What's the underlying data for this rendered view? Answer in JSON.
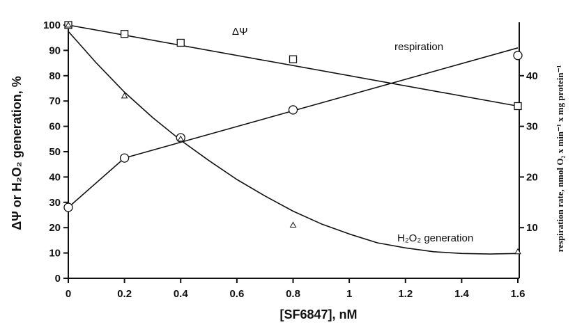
{
  "chart_data": {
    "type": "line",
    "x_label": "[SF6847], nM",
    "y_label_left": "ΔΨ or H₂O₂ generation, %",
    "y_label_right": "respiration rate, nmol O₂ x min⁻¹ x mg protein⁻¹",
    "xlim": [
      0,
      1.6
    ],
    "ylim_left": [
      0,
      100
    ],
    "ylim_right": [
      0,
      50
    ],
    "x_ticks": [
      0,
      0.2,
      0.4,
      0.6,
      0.8,
      1,
      1.2,
      1.4,
      1.6
    ],
    "x_tick_labels": [
      "0",
      "0.2",
      "0.4",
      "0.6",
      "0.8",
      "1",
      "1.2",
      "1.4",
      "1.6"
    ],
    "y_left_ticks": [
      0,
      10,
      20,
      30,
      40,
      50,
      60,
      70,
      80,
      90,
      100
    ],
    "y_left_tick_labels": [
      "0",
      "10",
      "20",
      "30",
      "40",
      "50",
      "60",
      "70",
      "80",
      "90",
      "100"
    ],
    "y_right_ticks": [
      10,
      20,
      30,
      40
    ],
    "y_right_tick_labels": [
      "10",
      "20",
      "30",
      "40"
    ],
    "grid": false,
    "series": [
      {
        "name": "ΔΨ",
        "marker": "square",
        "axis": "left",
        "x": [
          0,
          0.2,
          0.4,
          0.8,
          1.6
        ],
        "y": [
          100,
          96.5,
          93,
          86.5,
          68
        ],
        "fit_line": {
          "x": [
            0,
            1.6
          ],
          "y": [
            100,
            68
          ]
        }
      },
      {
        "name": "respiration",
        "marker": "circle",
        "axis": "right",
        "x": [
          0,
          0.2,
          0.4,
          0.8,
          1.6
        ],
        "y": [
          14,
          23.75,
          27.75,
          33.25,
          44
        ],
        "fit_line": {
          "x": [
            0,
            0.2,
            1.6
          ],
          "y": [
            14,
            23.75,
            45.5
          ]
        }
      },
      {
        "name": "H₂O₂ generation",
        "marker": "triangle",
        "axis": "left",
        "x": [
          0,
          0.2,
          0.4,
          0.8,
          1.6
        ],
        "y": [
          100,
          72,
          55,
          21,
          10.5
        ],
        "fit_curve": {
          "x": [
            0,
            0.1,
            0.2,
            0.3,
            0.4,
            0.5,
            0.6,
            0.7,
            0.8,
            0.9,
            1.0,
            1.1,
            1.2,
            1.3,
            1.4,
            1.5,
            1.6
          ],
          "y": [
            97.5,
            85,
            73.5,
            63.5,
            54.5,
            46.5,
            39,
            32.5,
            26.5,
            21.5,
            17.5,
            14,
            12,
            10.5,
            9.8,
            9.6,
            9.8
          ]
        }
      }
    ],
    "annotations": [
      {
        "text": "ΔΨ",
        "series": "ΔΨ"
      },
      {
        "text": "respiration",
        "series": "respiration"
      },
      {
        "text": "H₂O₂ generation",
        "series": "H₂O₂ generation"
      }
    ]
  }
}
